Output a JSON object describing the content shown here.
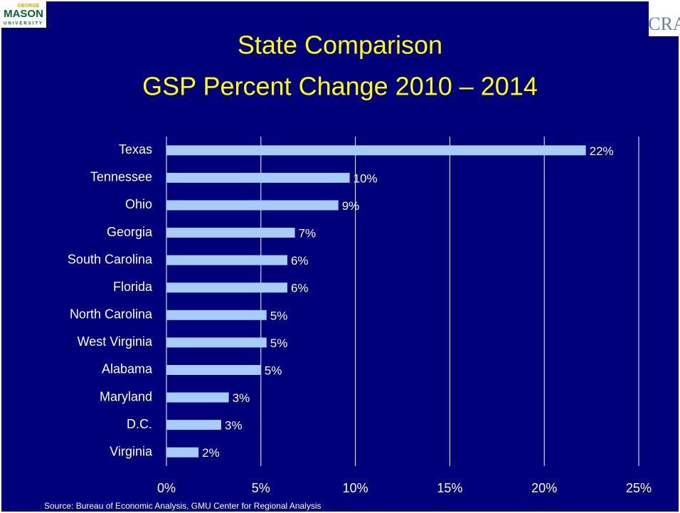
{
  "logos": {
    "left": [
      "GEORGE",
      "MASON",
      "UNIVERSITY"
    ],
    "right": "CRA"
  },
  "chart_data": {
    "type": "bar",
    "orientation": "horizontal",
    "title": [
      "State Comparison",
      "GSP Percent Change 2010 – 2014"
    ],
    "categories": [
      "Texas",
      "Tennessee",
      "Ohio",
      "Georgia",
      "South Carolina",
      "Florida",
      "North Carolina",
      "West Virginia",
      "Alabama",
      "Maryland",
      "D.C.",
      "Virginia"
    ],
    "values": [
      22.2,
      9.7,
      9.1,
      6.8,
      6.4,
      6.4,
      5.3,
      5.3,
      5.0,
      3.3,
      2.9,
      1.7
    ],
    "value_labels": [
      "22%",
      "10%",
      "9%",
      "7%",
      "6%",
      "6%",
      "5%",
      "5%",
      "5%",
      "3%",
      "3%",
      "2%"
    ],
    "color": "#a6cdf7",
    "xlim": [
      0,
      25
    ],
    "xticks": [
      {
        "value": 0,
        "label": "0%"
      },
      {
        "value": 5,
        "label": "5%"
      },
      {
        "value": 10,
        "label": "10%"
      },
      {
        "value": 15,
        "label": "15%"
      },
      {
        "value": 20,
        "label": "20%"
      },
      {
        "value": 25,
        "label": "25%"
      }
    ],
    "grid": true,
    "source": "Source: Bureau of Economic Analysis, GMU Center for Regional Analysis"
  }
}
